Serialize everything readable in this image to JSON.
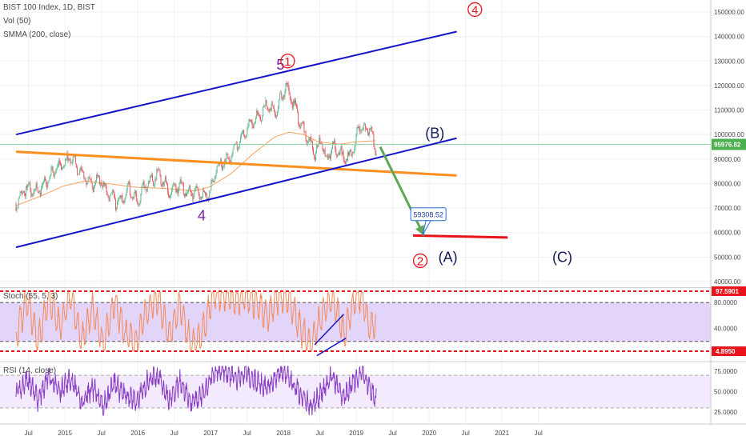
{
  "header": {
    "line1": "BIST 100 Index, 1D, BIST",
    "line2": "Vol (50)",
    "line3": "SMMA (200, close)"
  },
  "indicators": {
    "stoch": "Stoch (55, 5, 3)",
    "rsi": "RSI (14, close)"
  },
  "colors": {
    "grid": "#eef0f3",
    "candle_up": "#53b987",
    "candle_down": "#eb4d5c",
    "smma": "#f7a35c",
    "channel": "#1414c8",
    "orange_trend": "#ff9020",
    "target_line": "#e8131b",
    "arrow": "#5fa659",
    "stoch_line": "#f48b58",
    "stoch_band": "#e3d4fa",
    "rsi_line": "#8a3ec4",
    "rsi_band": "#f3eafd",
    "wave_red": "#e8131b",
    "wave_purple": "#7b1fa2",
    "wave_navy": "#12185a",
    "price_tag": "#4caf50"
  },
  "chart_data": [
    {
      "type": "line",
      "title": "BIST 100 Index, 1D, BIST",
      "x_ticks": [
        "Jul",
        "2015",
        "Jul",
        "2016",
        "Jul",
        "2017",
        "Jul",
        "2018",
        "Jul",
        "2019",
        "Jul",
        "2020",
        "Jul",
        "2021",
        "Jul"
      ],
      "y_ticks": [
        150000,
        140000,
        130000,
        120000,
        110000,
        100000,
        90000,
        80000,
        70000,
        60000,
        50000,
        40000
      ],
      "ylim": [
        38500,
        153000
      ],
      "series": [
        {
          "name": "BIST 100 Index",
          "x": [
            2014.35,
            2014.5,
            2014.6,
            2014.75,
            2014.9,
            2015.0,
            2015.1,
            2015.25,
            2015.4,
            2015.5,
            2015.6,
            2015.75,
            2015.9,
            2016.0,
            2016.15,
            2016.3,
            2016.45,
            2016.6,
            2016.7,
            2016.85,
            2017.0,
            2017.1,
            2017.25,
            2017.4,
            2017.5,
            2017.6,
            2017.7,
            2017.8,
            2017.9,
            2018.0,
            2018.05,
            2018.1,
            2018.2,
            2018.3,
            2018.4,
            2018.45,
            2018.55,
            2018.6,
            2018.7,
            2018.8,
            2018.9,
            2019.0,
            2019.05,
            2019.1,
            2019.2,
            2019.25,
            2019.3
          ],
          "y": [
            72000,
            79000,
            76000,
            80000,
            86000,
            88000,
            91000,
            84000,
            79000,
            82000,
            76000,
            72000,
            78000,
            73000,
            80000,
            84000,
            77000,
            80000,
            76000,
            77000,
            75000,
            86000,
            90000,
            96000,
            102000,
            106000,
            108000,
            112000,
            109000,
            115000,
            120000,
            116000,
            110000,
            101000,
            96000,
            92000,
            98000,
            89000,
            96000,
            92000,
            90000,
            95000,
            104000,
            102000,
            103000,
            98000,
            93000
          ]
        },
        {
          "name": "SMMA (200, close)",
          "x": [
            2014.35,
            2014.7,
            2015.0,
            2015.3,
            2015.6,
            2016.0,
            2016.4,
            2016.8,
            2017.0,
            2017.3,
            2017.6,
            2017.9,
            2018.1,
            2018.3,
            2018.5,
            2018.8,
            2019.0,
            2019.3
          ],
          "y": [
            71000,
            75000,
            79000,
            81000,
            80000,
            78500,
            78000,
            77000,
            78500,
            84000,
            92000,
            99000,
            101000,
            100000,
            97000,
            96000,
            97000,
            97500
          ]
        }
      ],
      "annotations": {
        "channel_upper": {
          "x": [
            2014.35,
            2020.4
          ],
          "y": [
            100000,
            142000
          ]
        },
        "channel_lower": {
          "x": [
            2014.35,
            2020.4
          ],
          "y": [
            54000,
            98500
          ]
        },
        "orange_trend": {
          "x": [
            2014.35,
            2020.4
          ],
          "y": [
            93000,
            83300
          ]
        },
        "target_line": {
          "x": [
            2019.8,
            2021.1
          ],
          "y": [
            58800,
            58000
          ]
        },
        "target_arrow": {
          "x": [
            2019.35,
            2019.95
          ],
          "y": [
            95000,
            58800
          ]
        },
        "target_label": "59308.52",
        "last_price": "95976.82",
        "wave_labels": [
          {
            "text": "4",
            "style": "circle",
            "color": "red",
            "x": 2020.65,
            "y": 151000
          },
          {
            "text": "5",
            "style": "plain",
            "color": "purple",
            "x": 2017.98,
            "y": 128500
          },
          {
            "text": "1",
            "style": "circle",
            "color": "red",
            "x": 2018.08,
            "y": 130000
          },
          {
            "text": "(B)",
            "style": "plain",
            "color": "navy",
            "x": 2020.1,
            "y": 100500
          },
          {
            "text": "4",
            "style": "plain",
            "color": "purple",
            "x": 2016.9,
            "y": 67000
          },
          {
            "text": "2",
            "style": "circle",
            "color": "red",
            "x": 2019.9,
            "y": 48500
          },
          {
            "text": "(A)",
            "style": "plain",
            "color": "navy",
            "x": 2020.28,
            "y": 50000
          },
          {
            "text": "(C)",
            "style": "plain",
            "color": "navy",
            "x": 2021.85,
            "y": 50000
          }
        ]
      }
    },
    {
      "type": "line",
      "title": "Stoch (55, 5, 3)",
      "y_ticks": [
        80,
        40
      ],
      "ylim": [
        0,
        100
      ],
      "upper_level": "97.5901",
      "lower_level": "4.8950",
      "series": [
        {
          "name": "Stoch %K",
          "x": [
            2014.35,
            2014.5,
            2014.65,
            2014.8,
            2014.95,
            2015.1,
            2015.25,
            2015.4,
            2015.55,
            2015.7,
            2015.85,
            2016.0,
            2016.15,
            2016.3,
            2016.45,
            2016.6,
            2016.75,
            2016.9,
            2017.05,
            2017.2,
            2017.35,
            2017.5,
            2017.65,
            2017.8,
            2017.95,
            2018.1,
            2018.25,
            2018.4,
            2018.55,
            2018.7,
            2018.85,
            2019.0,
            2019.1,
            2019.2,
            2019.3
          ],
          "y": [
            30,
            85,
            20,
            90,
            40,
            92,
            20,
            70,
            15,
            80,
            30,
            20,
            70,
            90,
            25,
            80,
            15,
            30,
            90,
            95,
            85,
            92,
            80,
            60,
            90,
            85,
            40,
            15,
            60,
            90,
            30,
            85,
            92,
            40,
            50
          ]
        }
      ]
    },
    {
      "type": "line",
      "title": "RSI (14, close)",
      "y_ticks": [
        75,
        50,
        25
      ],
      "ylim": [
        20,
        82
      ],
      "series": [
        {
          "name": "RSI",
          "x": [
            2014.35,
            2014.5,
            2014.65,
            2014.8,
            2014.95,
            2015.1,
            2015.25,
            2015.4,
            2015.55,
            2015.7,
            2015.85,
            2016.0,
            2016.15,
            2016.3,
            2016.45,
            2016.6,
            2016.75,
            2016.9,
            2017.05,
            2017.2,
            2017.35,
            2017.5,
            2017.65,
            2017.8,
            2017.95,
            2018.1,
            2018.25,
            2018.4,
            2018.55,
            2018.7,
            2018.85,
            2019.0,
            2019.1,
            2019.2,
            2019.3
          ],
          "y": [
            45,
            65,
            40,
            70,
            50,
            68,
            35,
            55,
            32,
            60,
            45,
            38,
            60,
            70,
            40,
            62,
            38,
            45,
            72,
            76,
            66,
            72,
            62,
            55,
            73,
            68,
            48,
            30,
            50,
            70,
            40,
            65,
            78,
            55,
            40
          ]
        }
      ]
    }
  ]
}
